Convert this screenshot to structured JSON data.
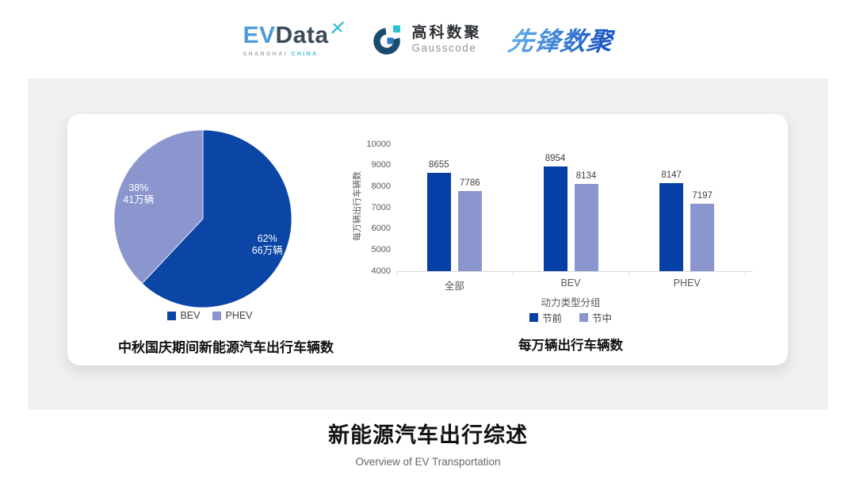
{
  "header": {
    "evdata": {
      "ev": "EV",
      "data": "Data",
      "sub_left": "SHANGHAI",
      "sub_right": "CHINA"
    },
    "gausscode": {
      "cn": "高科数聚",
      "en": "Gausscode"
    },
    "pioneer": {
      "text": "先锋数聚"
    }
  },
  "colors": {
    "series_dark": "#0640A6",
    "series_light": "#8B95CE",
    "axis_text": "#595959",
    "panel_bg": "#F0F0F1"
  },
  "chart_data": [
    {
      "type": "pie",
      "title": "中秋国庆期间新能源汽车出行车辆数",
      "start_angle": "top",
      "direction": "clockwise",
      "slices": [
        {
          "label": "BEV",
          "percent": 62,
          "percent_label": "62%",
          "amount_label": "66万辆",
          "color": "#0B45A5"
        },
        {
          "label": "PHEV",
          "percent": 38,
          "percent_label": "38%",
          "amount_label": "41万辆",
          "color": "#8B95CE"
        }
      ]
    },
    {
      "type": "bar",
      "title": "每万辆出行车辆数",
      "xlabel": "动力类型分组",
      "ylabel": "每万辆出行车辆数",
      "ylim": [
        4000,
        10000
      ],
      "yticks": [
        4000,
        5000,
        6000,
        7000,
        8000,
        9000,
        10000
      ],
      "grid": false,
      "legend_position": "bottom",
      "categories": [
        "全部",
        "BEV",
        "PHEV"
      ],
      "series": [
        {
          "name": "节前",
          "color": "#0640A6",
          "values": [
            8655,
            8954,
            8147
          ]
        },
        {
          "name": "节中",
          "color": "#8B95CE",
          "values": [
            7786,
            8134,
            7197
          ]
        }
      ]
    }
  ],
  "footer": {
    "title": "新能源汽车出行综述",
    "subtitle": "Overview of EV Transportation"
  }
}
